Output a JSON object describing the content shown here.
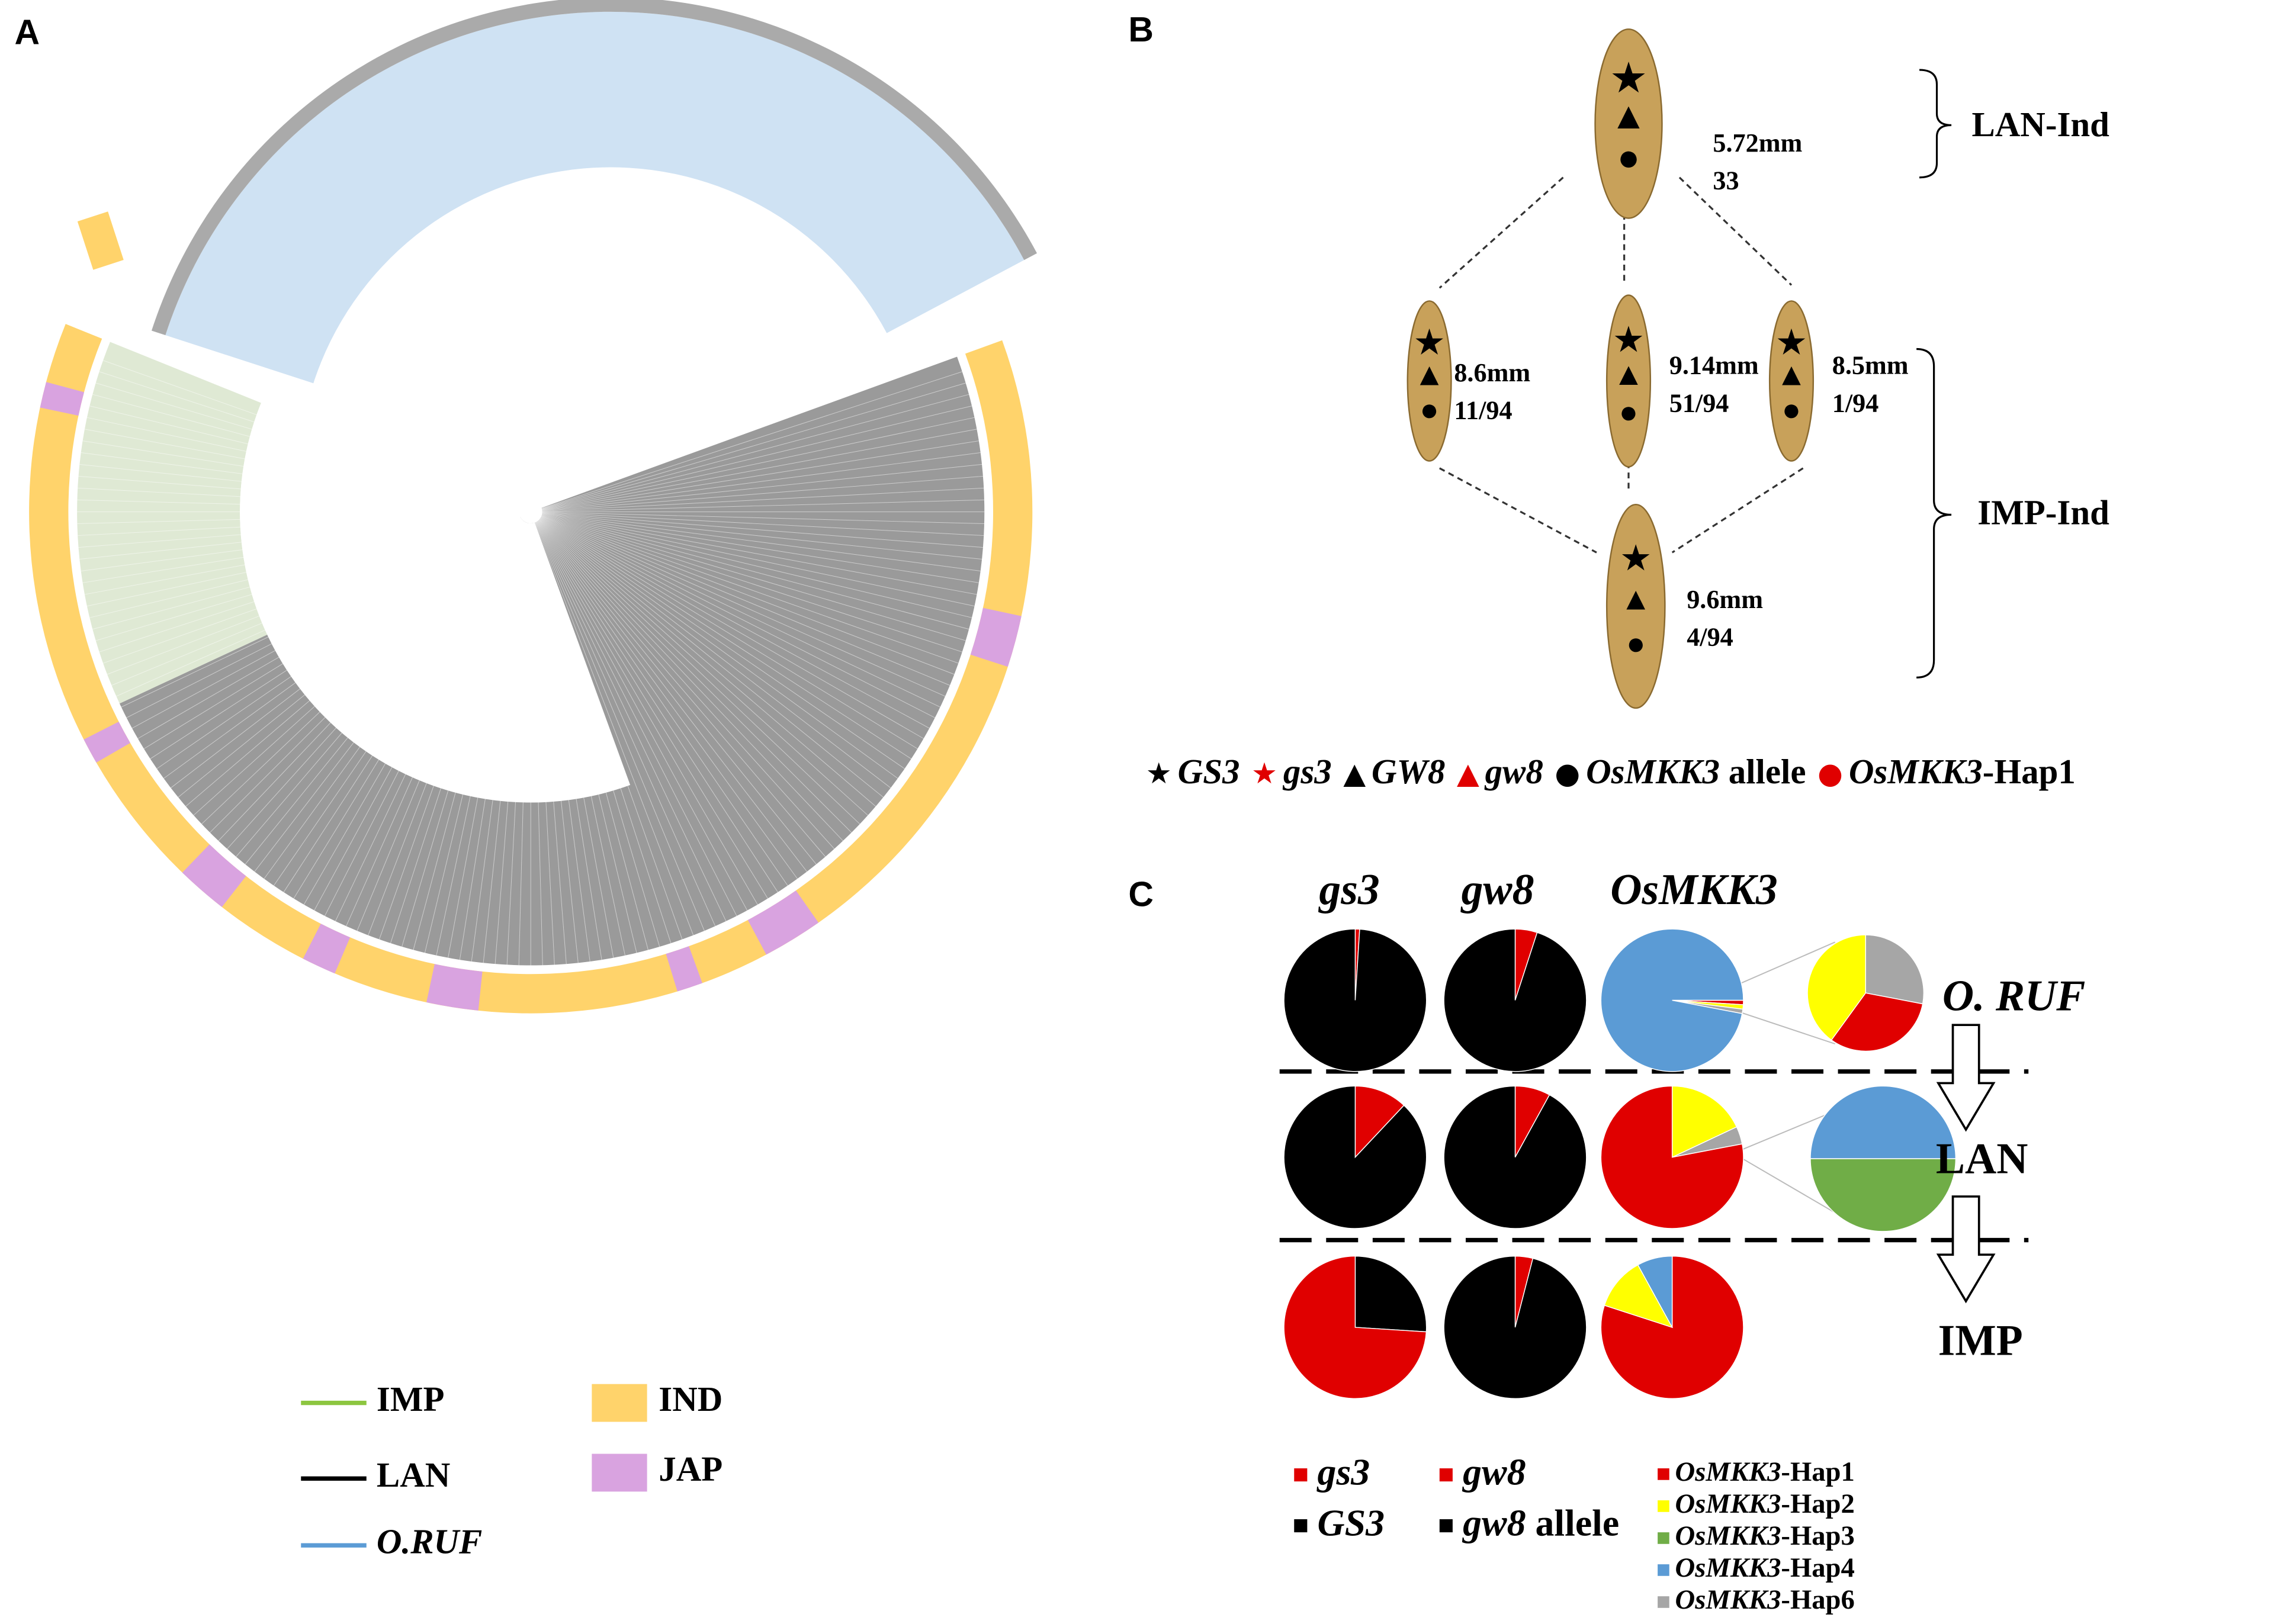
{
  "panel_a": {
    "label": "A",
    "legend": [
      {
        "name": "IMP",
        "color": "#8cc63f",
        "kind": "line"
      },
      {
        "name": "LAN",
        "color": "#000000",
        "kind": "line"
      },
      {
        "name": "O.RUF",
        "color": "#5b9bd5",
        "kind": "line"
      },
      {
        "name": "IND",
        "color": "#ffd36b",
        "kind": "box"
      },
      {
        "name": "JAP",
        "color": "#d9a3e0",
        "kind": "box"
      }
    ]
  },
  "panel_b": {
    "label": "B",
    "groups": [
      "LAN-Ind",
      "IMP-Ind"
    ],
    "grains": [
      {
        "length": "5.72mm",
        "count": "33",
        "markers": [
          "#000000",
          "#000000",
          "#000000"
        ]
      },
      {
        "length": "8.6mm",
        "count": "11/94",
        "markers": [
          "#e00000",
          "#000000",
          "#000000"
        ]
      },
      {
        "length": "9.14mm",
        "count": "51/94",
        "markers": [
          "#e00000",
          "#000000",
          "#e00000"
        ]
      },
      {
        "length": "8.5mm",
        "count": "1/94",
        "markers": [
          "#000000",
          "#e00000",
          "#e00000"
        ]
      },
      {
        "length": "9.6mm",
        "count": "4/94",
        "markers": [
          "#e00000",
          "#e00000",
          "#e00000"
        ]
      }
    ],
    "legend": [
      {
        "symbol": "★",
        "color": "#000000",
        "name": "GS3"
      },
      {
        "symbol": "★",
        "color": "#e00000",
        "name": "gs3"
      },
      {
        "symbol": "▲",
        "color": "#000000",
        "name": "GW8"
      },
      {
        "symbol": "▲",
        "color": "#e00000",
        "name": "gw8"
      },
      {
        "symbol": "●",
        "color": "#000000",
        "name": "OsMKK3",
        "suffix": " allele"
      },
      {
        "symbol": "●",
        "color": "#e00000",
        "name": "OsMKK3",
        "suffix": "-Hap1"
      }
    ]
  },
  "panel_c": {
    "label": "C",
    "columns": [
      "gs3",
      "gw8",
      "OsMKK3"
    ],
    "rows": [
      {
        "label": "O. RUF",
        "pies": [
          {
            "values": [
              1,
              99
            ],
            "colors": [
              "#e00000",
              "#000000"
            ]
          },
          {
            "values": [
              5,
              95
            ],
            "colors": [
              "#e00000",
              "#000000"
            ]
          },
          {
            "values": [
              1,
              1,
              1,
              97
            ],
            "colors": [
              "#e00000",
              "#ffff00",
              "#a6a6a6",
              "#5b9bd5"
            ]
          }
        ],
        "inset": {
          "values": [
            28,
            32,
            40
          ],
          "colors": [
            "#a6a6a6",
            "#e00000",
            "#ffff00"
          ]
        }
      },
      {
        "label": "LAN",
        "pies": [
          {
            "values": [
              12,
              88
            ],
            "colors": [
              "#e00000",
              "#000000"
            ]
          },
          {
            "values": [
              8,
              92
            ],
            "colors": [
              "#e00000",
              "#000000"
            ]
          },
          {
            "values": [
              18,
              4,
              78
            ],
            "colors": [
              "#ffff00",
              "#a6a6a6",
              "#e00000"
            ]
          }
        ],
        "inset": {
          "values": [
            50,
            50
          ],
          "colors": [
            "#5b9bd5",
            "#70ad47"
          ]
        }
      },
      {
        "label": "IMP",
        "pies": [
          {
            "values": [
              26,
              74
            ],
            "colors": [
              "#000000",
              "#e00000"
            ]
          },
          {
            "values": [
              4,
              96
            ],
            "colors": [
              "#e00000",
              "#000000"
            ]
          },
          {
            "values": [
              80,
              12,
              8
            ],
            "colors": [
              "#e00000",
              "#ffff00",
              "#5b9bd5"
            ]
          }
        ]
      }
    ],
    "legend": [
      {
        "name": "gs3",
        "color": "#e00000"
      },
      {
        "name": "GS3",
        "color": "#000000"
      },
      {
        "name": "gw8",
        "color": "#e00000"
      },
      {
        "name": "gw8",
        "suffix": " allele",
        "color": "#000000"
      }
    ],
    "hap_legend": [
      {
        "name": "OsMKK3",
        "suffix": "-Hap1",
        "color": "#e00000"
      },
      {
        "name": "OsMKK3",
        "suffix": "-Hap2",
        "color": "#ffff00"
      },
      {
        "name": "OsMKK3",
        "suffix": "-Hap3",
        "color": "#70ad47"
      },
      {
        "name": "OsMKK3",
        "suffix": "-Hap4",
        "color": "#5b9bd5"
      },
      {
        "name": "OsMKK3",
        "suffix": "-Hap6",
        "color": "#a6a6a6"
      }
    ]
  }
}
